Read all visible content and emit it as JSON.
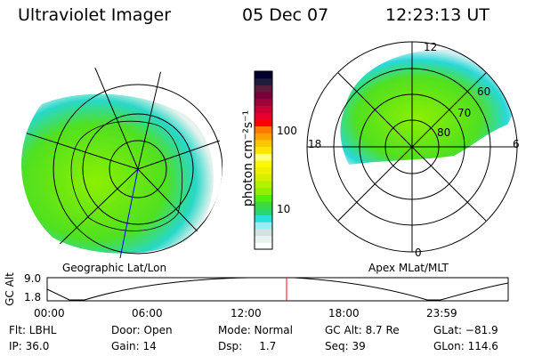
{
  "header": {
    "instrument": "Ultraviolet Imager",
    "date": "05 Dec 07",
    "time": "12:23:13 UT"
  },
  "left_map": {
    "label": "Geographic Lat/Lon"
  },
  "right_map": {
    "label": "Apex MLat/MLT",
    "mlt_labels": [
      "12",
      "18",
      "6",
      "0"
    ],
    "lat_labels": [
      "60",
      "70",
      "80"
    ]
  },
  "colorbar": {
    "unit_label": "photon cm⁻²s⁻¹",
    "tick_labels": [
      "100",
      "10"
    ],
    "colors": [
      "#ffffff",
      "#e6f2ee",
      "#d2e2e0",
      "#96eef4",
      "#28e0d8",
      "#28d868",
      "#3cd83c",
      "#50f00a",
      "#8cf000",
      "#b4f000",
      "#d2f000",
      "#f0f000",
      "#fafa00",
      "#ffff80",
      "#ffe600",
      "#ffc800",
      "#ffa000",
      "#ff7800",
      "#ff0000",
      "#e6002d",
      "#c80032",
      "#a0003c",
      "#78003c",
      "#5a1e3c",
      "#1e1e3c",
      "#000030"
    ]
  },
  "altitude_plot": {
    "ylabel": "GC Alt",
    "y_ticks": [
      "9.0",
      "1.8"
    ],
    "x_ticks": [
      "00:00",
      "06:00",
      "12:00",
      "18:00",
      "23:59"
    ],
    "current_time_marker_color": "#ff0000"
  },
  "status": {
    "row1": [
      "Flt: LBHL",
      "Door: Open",
      "Mode: Normal",
      "GC Alt: 8.7 Re",
      "GLat: −81.9"
    ],
    "row2": [
      "IP: 36.0",
      "Gain: 14",
      "Dsp:     1.7",
      "Seq: 39",
      "GLon: 114.6"
    ]
  }
}
